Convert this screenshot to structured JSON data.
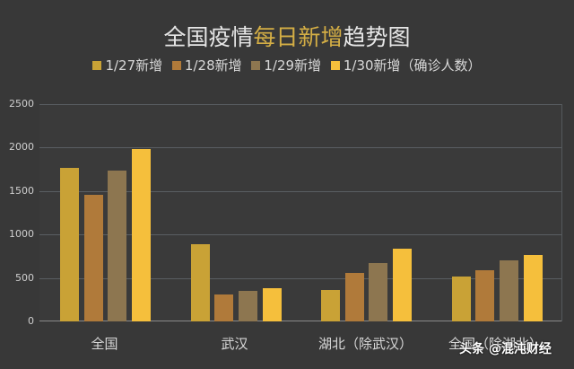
{
  "title": {
    "part1": "全国疫情",
    "highlight": "每日新增",
    "part2": "趋势图",
    "highlight_color": "#d4ae45"
  },
  "legend": [
    {
      "label": "1/27新增",
      "color": "#c9a236"
    },
    {
      "label": "1/28新增",
      "color": "#b07a3a"
    },
    {
      "label": "1/29新增",
      "color": "#8d7650"
    },
    {
      "label": "1/30新增（确诊人数）",
      "color": "#f5bf3c"
    }
  ],
  "y_ticks": [
    "2500",
    "2000",
    "1500",
    "1000",
    "500",
    "0"
  ],
  "watermark": "头条 @混沌财经",
  "chart_data": {
    "type": "bar",
    "title": "全国疫情每日新增趋势图",
    "xlabel": "",
    "ylabel": "确诊人数",
    "ylim": [
      0,
      2500
    ],
    "grid": true,
    "legend_position": "top",
    "categories": [
      "全国",
      "武汉",
      "湖北（除武汉）",
      "全国（除湖北）"
    ],
    "series": [
      {
        "name": "1/27新增",
        "color": "#c9a236",
        "values": [
          1771,
          892,
          360,
          519
        ]
      },
      {
        "name": "1/28新增",
        "color": "#b07a3a",
        "values": [
          1459,
          315,
          553,
          591
        ]
      },
      {
        "name": "1/29新增",
        "color": "#8d7650",
        "values": [
          1737,
          356,
          676,
          705
        ]
      },
      {
        "name": "1/30新增（确诊人数）",
        "color": "#f5bf3c",
        "values": [
          1982,
          378,
          842,
          762
        ]
      }
    ]
  }
}
